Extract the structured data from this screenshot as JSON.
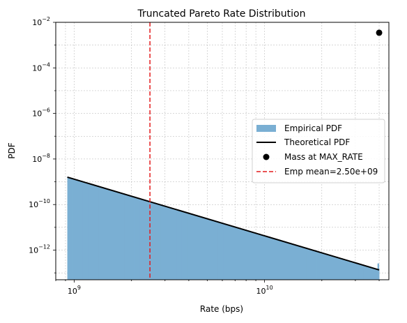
{
  "chart_data": {
    "type": "area",
    "title": "Truncated Pareto Rate Distribution",
    "xlabel": "Rate (bps)",
    "ylabel": "PDF",
    "x_scale": "log",
    "y_scale": "log",
    "xlim": [
      800000000,
      45000000000
    ],
    "ylim": [
      5e-14,
      0.01
    ],
    "grid": true,
    "x_ticks": [
      {
        "value": 1000000000,
        "base": "10",
        "exp": "9"
      },
      {
        "value": 10000000000,
        "base": "10",
        "exp": "10"
      }
    ],
    "y_ticks": [
      {
        "value": 1e-12,
        "base": "10",
        "exp": "−12"
      },
      {
        "value": 1e-10,
        "base": "10",
        "exp": "−10"
      },
      {
        "value": 1e-08,
        "base": "10",
        "exp": "−8"
      },
      {
        "value": 1e-06,
        "base": "10",
        "exp": "−6"
      },
      {
        "value": 0.0001,
        "base": "10",
        "exp": "−4"
      },
      {
        "value": 0.01,
        "base": "10",
        "exp": "−2"
      }
    ],
    "histogram": {
      "name": "Empirical PDF",
      "color": "#7aafd3",
      "x_min": 920000000,
      "x_max": 40000000000,
      "y_at_min": 1.6e-09,
      "y_at_max": 1.35e-13,
      "last_bar": {
        "x0": 39200000000,
        "x1": 40000000000,
        "y": 2.6e-13
      }
    },
    "theoretical": {
      "name": "Theoretical PDF",
      "color": "#000000",
      "points": [
        [
          920000000,
          1.6e-09
        ],
        [
          40000000000,
          1.35e-13
        ]
      ]
    },
    "mass_point": {
      "name": "Mass at MAX_RATE",
      "color": "#000000",
      "x": 40000000000,
      "y": 0.0035
    },
    "mean_line": {
      "name": "Emp mean=2.50e+09",
      "color": "#e41a1c",
      "x": 2500000000
    },
    "legend_position": "center-right"
  }
}
